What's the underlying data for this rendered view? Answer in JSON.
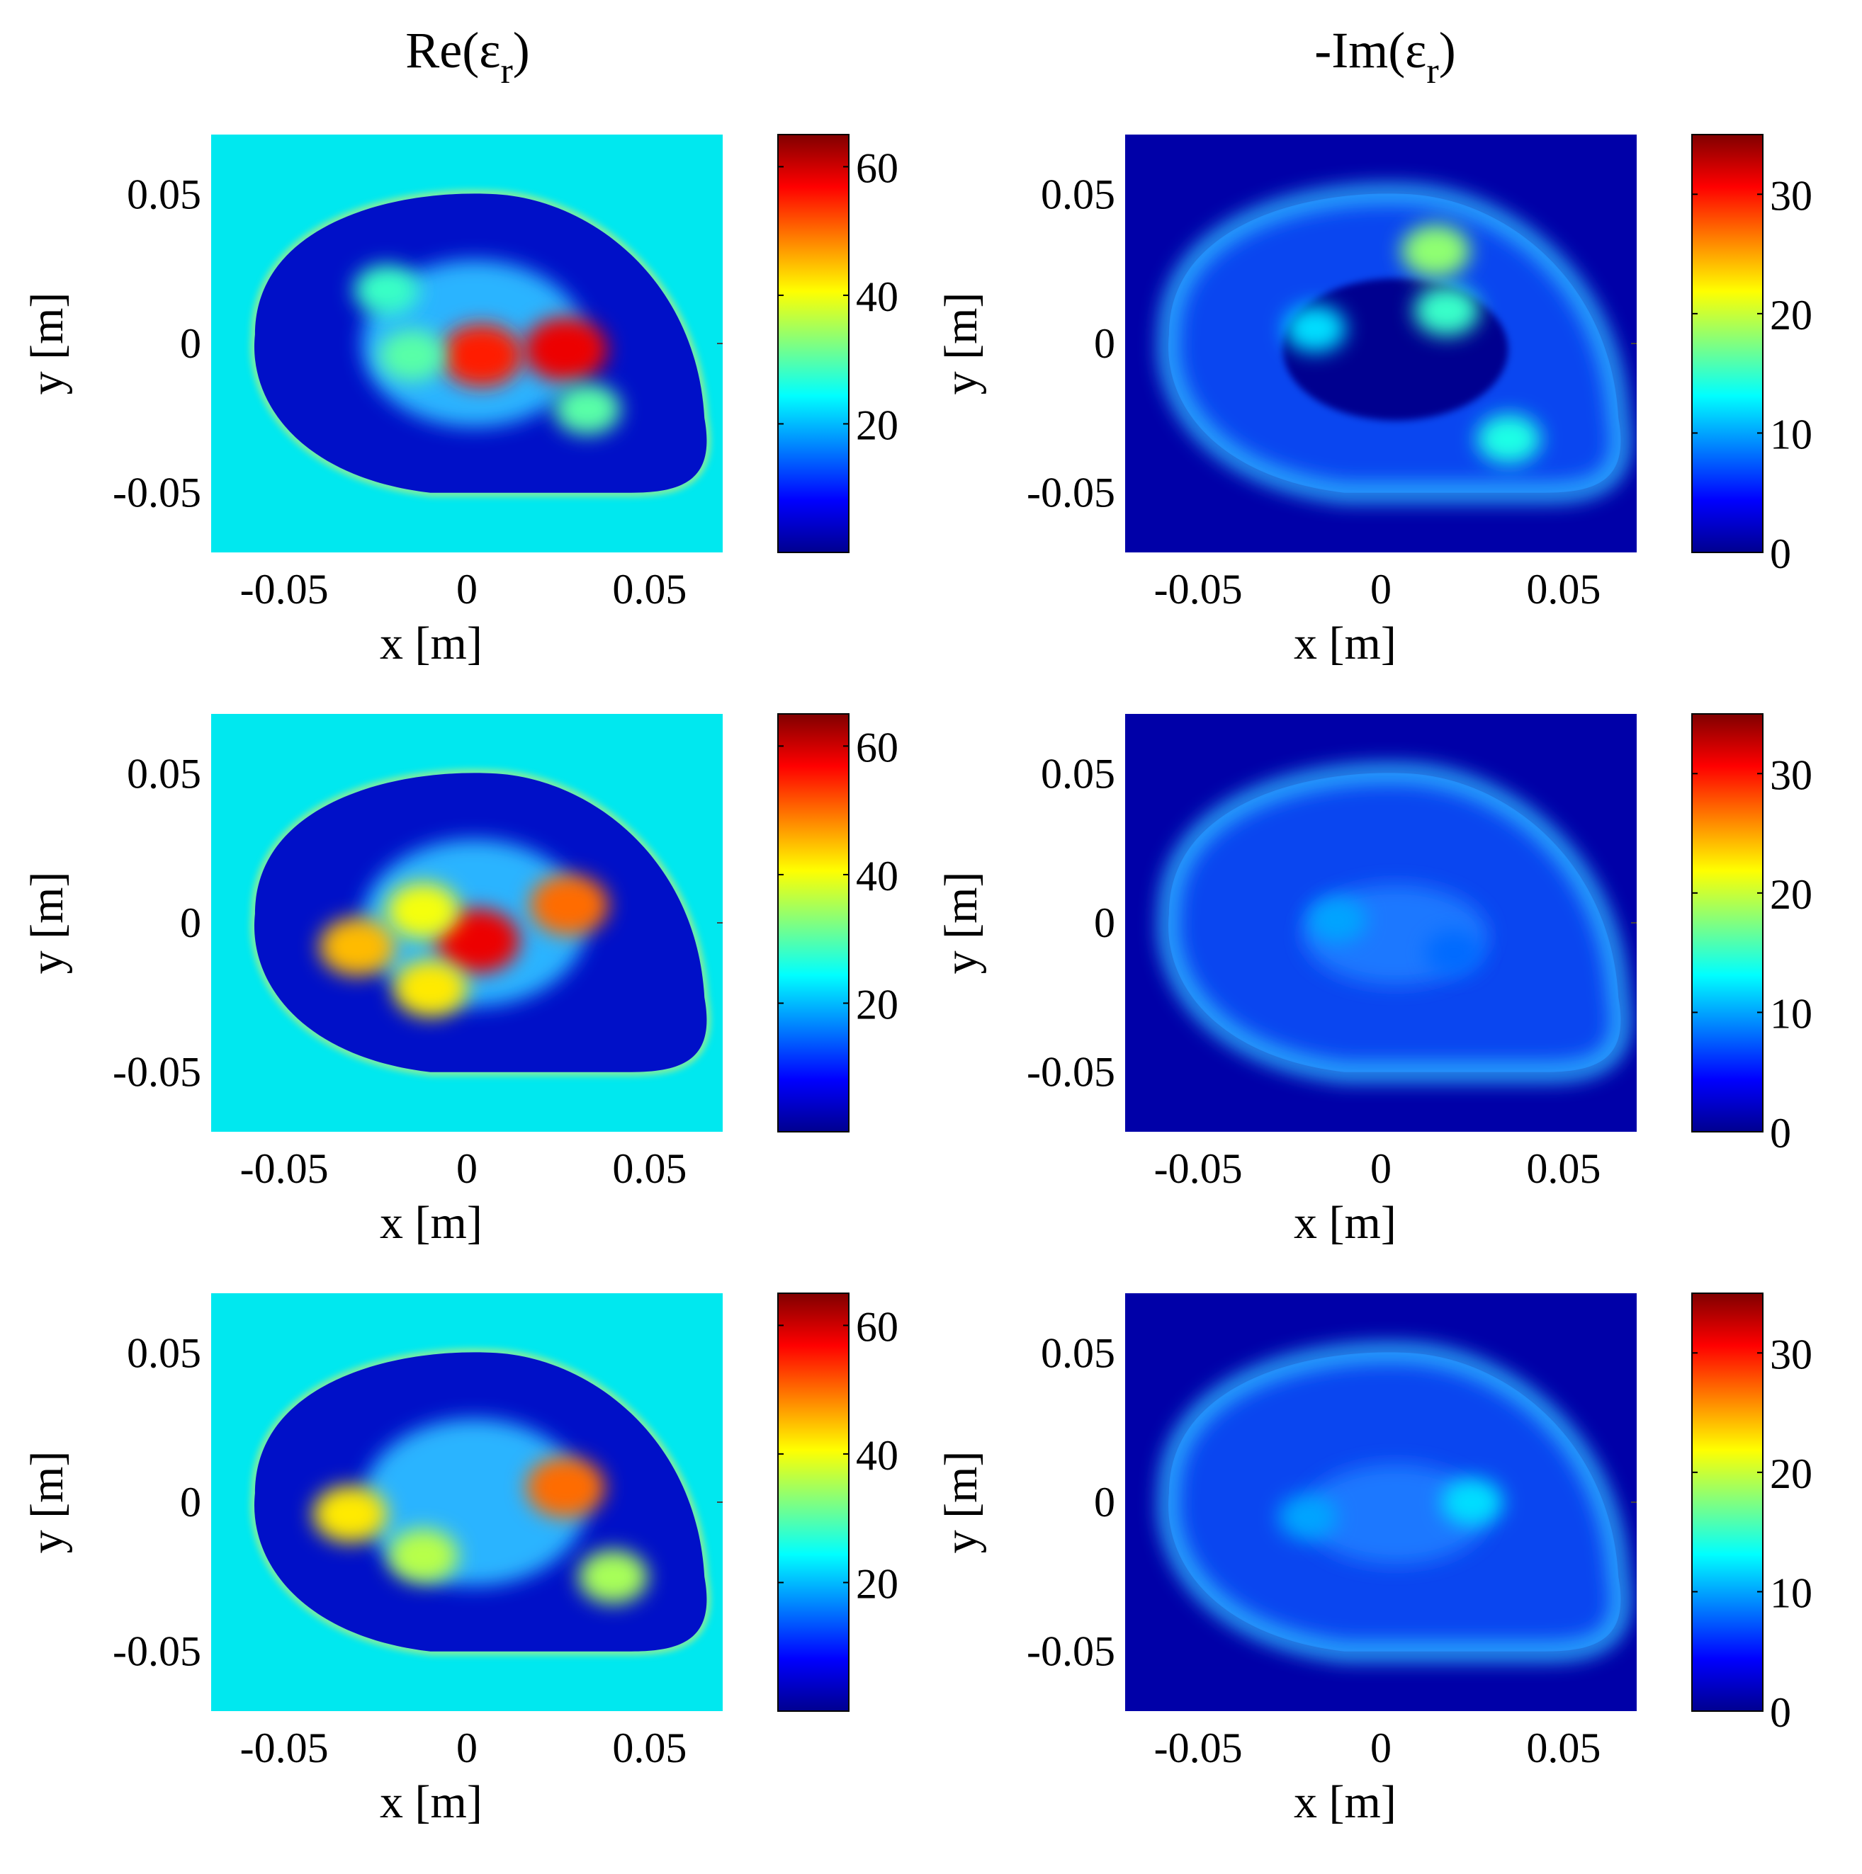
{
  "figure": {
    "col_titles": [
      {
        "base": "Re(ε",
        "sub": "r",
        "tail": ")"
      },
      {
        "base": "-Im(ε",
        "sub": "r",
        "tail": ")"
      }
    ]
  },
  "colors": {
    "re_background": "#00e8ef",
    "im_background": "#0000a8",
    "jet_stops": [
      "#00008f",
      "#0000ff",
      "#0080ff",
      "#00ffff",
      "#80ff80",
      "#ffff00",
      "#ff8000",
      "#ff0000",
      "#800000"
    ]
  },
  "chart_data": [
    {
      "id": "re-1",
      "type": "heatmap",
      "quantity": "Re(εr)",
      "xlabel": "x [m]",
      "ylabel": "y [m]",
      "xticks": [
        "-0.05",
        "0",
        "0.05"
      ],
      "yticks": [
        "0.05",
        "0",
        "-0.05"
      ],
      "xlim": [
        -0.07,
        0.07
      ],
      "ylim": [
        -0.07,
        0.07
      ],
      "colorbar": {
        "range": [
          0,
          65
        ],
        "ticks": [
          20,
          40,
          60
        ]
      },
      "background_value": 22,
      "hotspots": [
        {
          "x": 0.004,
          "y": -0.004,
          "v": 55
        },
        {
          "x": 0.027,
          "y": -0.002,
          "v": 58
        },
        {
          "x": -0.015,
          "y": -0.004,
          "v": 30
        },
        {
          "x": -0.022,
          "y": 0.018,
          "v": 28
        },
        {
          "x": 0.033,
          "y": -0.022,
          "v": 30
        }
      ]
    },
    {
      "id": "im-1",
      "type": "heatmap",
      "quantity": "-Im(εr)",
      "xlabel": "x [m]",
      "ylabel": "y [m]",
      "xticks": [
        "-0.05",
        "0",
        "0.05"
      ],
      "yticks": [
        "0.05",
        "0",
        "-0.05"
      ],
      "xlim": [
        -0.07,
        0.07
      ],
      "ylim": [
        -0.07,
        0.07
      ],
      "colorbar": {
        "range": [
          0,
          35
        ],
        "ticks": [
          0,
          10,
          20,
          30
        ]
      },
      "background_value": 0,
      "hotspots": [
        {
          "x": 0.018,
          "y": 0.011,
          "v": 15
        },
        {
          "x": -0.018,
          "y": 0.005,
          "v": 12
        },
        {
          "x": 0.015,
          "y": 0.031,
          "v": 18
        },
        {
          "x": 0.035,
          "y": -0.032,
          "v": 14
        }
      ]
    },
    {
      "id": "re-2",
      "type": "heatmap",
      "quantity": "Re(εr)",
      "xlabel": "x [m]",
      "ylabel": "y [m]",
      "xticks": [
        "-0.05",
        "0",
        "0.05"
      ],
      "yticks": [
        "0.05",
        "0",
        "-0.05"
      ],
      "xlim": [
        -0.07,
        0.07
      ],
      "ylim": [
        -0.07,
        0.07
      ],
      "colorbar": {
        "range": [
          0,
          65
        ],
        "ticks": [
          20,
          40,
          60
        ]
      },
      "background_value": 22,
      "hotspots": [
        {
          "x": 0.003,
          "y": -0.006,
          "v": 58
        },
        {
          "x": 0.028,
          "y": 0.006,
          "v": 50
        },
        {
          "x": -0.03,
          "y": -0.008,
          "v": 45
        },
        {
          "x": -0.012,
          "y": 0.004,
          "v": 40
        },
        {
          "x": -0.01,
          "y": -0.022,
          "v": 42
        }
      ]
    },
    {
      "id": "im-2",
      "type": "heatmap",
      "quantity": "-Im(εr)",
      "xlabel": "x [m]",
      "ylabel": "y [m]",
      "xticks": [
        "-0.05",
        "0",
        "0.05"
      ],
      "yticks": [
        "0.05",
        "0",
        "-0.05"
      ],
      "xlim": [
        -0.07,
        0.07
      ],
      "ylim": [
        -0.07,
        0.07
      ],
      "colorbar": {
        "range": [
          0,
          35
        ],
        "ticks": [
          0,
          10,
          20,
          30
        ]
      },
      "background_value": 0,
      "hotspots": [
        {
          "x": -0.012,
          "y": 0.001,
          "v": 10
        },
        {
          "x": 0.02,
          "y": -0.01,
          "v": 8
        }
      ]
    },
    {
      "id": "re-3",
      "type": "heatmap",
      "quantity": "Re(εr)",
      "xlabel": "x [m]",
      "ylabel": "y [m]",
      "xticks": [
        "-0.05",
        "0",
        "0.05"
      ],
      "yticks": [
        "0.05",
        "0",
        "-0.05"
      ],
      "xlim": [
        -0.07,
        0.07
      ],
      "ylim": [
        -0.07,
        0.07
      ],
      "colorbar": {
        "range": [
          0,
          65
        ],
        "ticks": [
          20,
          40,
          60
        ]
      },
      "background_value": 22,
      "hotspots": [
        {
          "x": 0.027,
          "y": 0.005,
          "v": 50
        },
        {
          "x": -0.032,
          "y": -0.004,
          "v": 42
        },
        {
          "x": -0.012,
          "y": -0.018,
          "v": 36
        },
        {
          "x": 0.04,
          "y": -0.025,
          "v": 35
        }
      ]
    },
    {
      "id": "im-3",
      "type": "heatmap",
      "quantity": "-Im(εr)",
      "xlabel": "x [m]",
      "ylabel": "y [m]",
      "xticks": [
        "-0.05",
        "0",
        "0.05"
      ],
      "yticks": [
        "0.05",
        "0",
        "-0.05"
      ],
      "xlim": [
        -0.07,
        0.07
      ],
      "ylim": [
        -0.07,
        0.07
      ],
      "colorbar": {
        "range": [
          0,
          35
        ],
        "ticks": [
          0,
          10,
          20,
          30
        ]
      },
      "background_value": 0,
      "hotspots": [
        {
          "x": 0.025,
          "y": 0.0,
          "v": 12
        },
        {
          "x": -0.02,
          "y": -0.005,
          "v": 10
        }
      ]
    }
  ]
}
